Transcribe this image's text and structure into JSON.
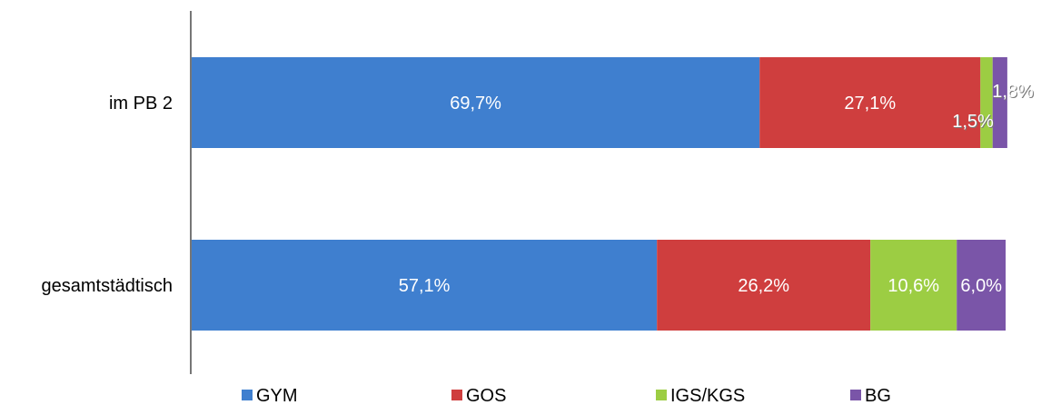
{
  "chart_data": {
    "type": "bar",
    "orientation": "horizontal",
    "stacked": "percent",
    "categories": [
      "im PB 2",
      "gesamtstädtisch"
    ],
    "series": [
      {
        "name": "GYM",
        "values": [
          69.7,
          57.1
        ],
        "labels": [
          "69,7%",
          "57,1%"
        ],
        "color": "#3f7fcf"
      },
      {
        "name": "GOS",
        "values": [
          27.1,
          26.2
        ],
        "labels": [
          "27,1%",
          "26,2%"
        ],
        "color": "#cf3e3e"
      },
      {
        "name": "IGS/KGS",
        "values": [
          1.5,
          10.6
        ],
        "labels": [
          "1,5%",
          "10,6%"
        ],
        "color": "#9ccd43"
      },
      {
        "name": "BG",
        "values": [
          1.8,
          6.0
        ],
        "labels": [
          "1,8%",
          "6,0%"
        ],
        "color": "#7a55a8"
      }
    ],
    "xlim": [
      0,
      100
    ],
    "legend_position": "bottom",
    "grid": false
  }
}
